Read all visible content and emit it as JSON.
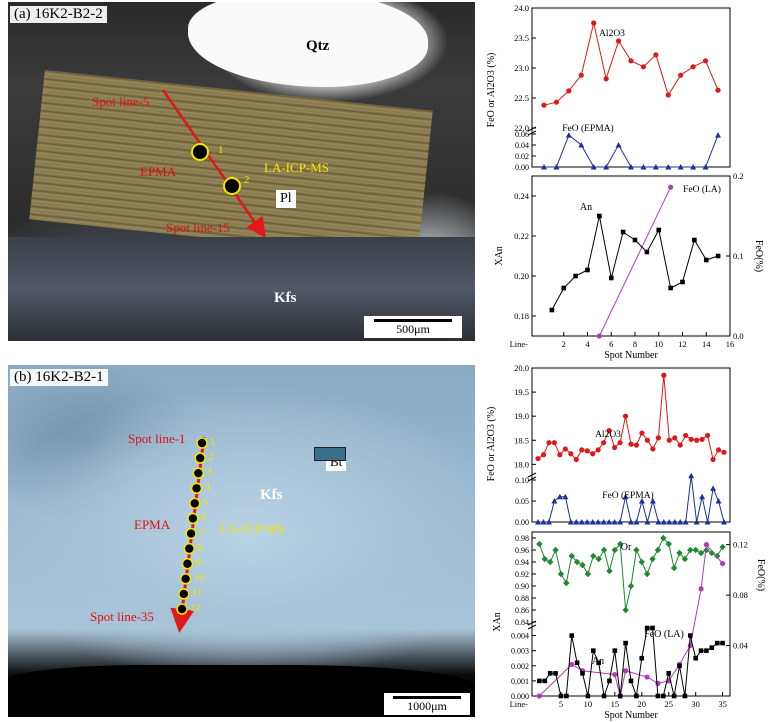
{
  "panel_a": {
    "title": "(a) 16K2-B2-2",
    "minerals": [
      "Qtz",
      "Pl",
      "Kfs"
    ],
    "spot_start": "Spot line-5",
    "spot_end": "Spot line-15",
    "spot_numbers": [
      "1",
      "2"
    ],
    "epma": "EPMA",
    "la": "LA-ICP-MS",
    "scale": "500μm"
  },
  "panel_b": {
    "title": "(b) 16K2-B2-1",
    "minerals": [
      "Kfs",
      "Bt"
    ],
    "spot_start": "Spot line-1",
    "spot_end": "Spot line-35",
    "spot_numbers": [
      "1",
      "2",
      "3",
      "4",
      "5",
      "6",
      "7",
      "8",
      "9",
      "10",
      "11",
      "12"
    ],
    "epma": "EPMA",
    "la": "LA-ICP-MS",
    "scale": "1000μm"
  },
  "colors": {
    "red": "#e01818",
    "blue": "#1f2f9a",
    "black": "#000000",
    "green": "#1c8a2e",
    "magenta": "#b03cb8"
  },
  "chart_data": [
    {
      "type": "line",
      "id": "a-top",
      "ylabel": "FeO or Al2O3 (%)",
      "x": [
        1,
        2,
        3,
        4,
        5,
        6,
        7,
        8,
        9,
        10,
        11,
        12,
        13,
        14,
        15
      ],
      "series": [
        {
          "name": "Al2O3",
          "values": [
            22.38,
            22.43,
            22.62,
            22.88,
            23.75,
            22.82,
            23.45,
            23.12,
            23.02,
            23.22,
            22.55,
            22.88,
            23.02,
            23.12,
            22.63
          ]
        },
        {
          "name": "FeO (EPMA)",
          "values": [
            0,
            0,
            0.058,
            0.04,
            0,
            0,
            0.04,
            0,
            0,
            0,
            0,
            0,
            0,
            0,
            0.058
          ]
        }
      ],
      "ylim_upper": [
        22.0,
        24.0
      ],
      "yticks_upper": [
        "22.0",
        "22.5",
        "23.0",
        "23.5",
        "24.0"
      ],
      "ylim_lower": [
        0,
        0.06
      ],
      "yticks_lower": [
        "0.00",
        "0.02",
        "0.04",
        "0.06"
      ]
    },
    {
      "type": "line",
      "id": "a-bottom",
      "xlabel": "Spot Number",
      "x_prefix": "Line-",
      "ylabel": "XAn",
      "y2label": "FeO(%)",
      "xticks": [
        "2",
        "4",
        "6",
        "8",
        "10",
        "12",
        "14",
        "16"
      ],
      "xlim": [
        0,
        16
      ],
      "series": [
        {
          "name": "An",
          "x": [
            1,
            2,
            3,
            4,
            5,
            6,
            7,
            8,
            9,
            10,
            11,
            12,
            13,
            14,
            15
          ],
          "values": [
            0.183,
            0.194,
            0.2,
            0.203,
            0.23,
            0.199,
            0.222,
            0.218,
            0.212,
            0.223,
            0.194,
            0.197,
            0.218,
            0.208,
            0.21
          ]
        },
        {
          "name": "FeO (LA)",
          "x": [
            5,
            11
          ],
          "values": [
            0.0,
            0.186
          ]
        }
      ],
      "ylim": [
        0.17,
        0.25
      ],
      "yticks": [
        "0.18",
        "0.20",
        "0.22",
        "0.24"
      ],
      "y2lim": [
        0,
        0.2
      ],
      "y2ticks": [
        "0.0",
        "0.1",
        "0.2"
      ]
    },
    {
      "type": "line",
      "id": "b-top",
      "ylabel": "FeO or Al2O3 (%)",
      "x": [
        1,
        2,
        3,
        4,
        5,
        6,
        7,
        8,
        9,
        10,
        11,
        12,
        13,
        14,
        15,
        16,
        17,
        18,
        19,
        20,
        21,
        22,
        23,
        24,
        25,
        26,
        27,
        28,
        29,
        30,
        31,
        32,
        33,
        34,
        35
      ],
      "series": [
        {
          "name": "Al2O3",
          "values": [
            18.12,
            18.2,
            18.45,
            18.45,
            18.2,
            18.32,
            18.22,
            18.1,
            18.3,
            18.28,
            18.22,
            18.3,
            18.45,
            18.7,
            18.35,
            18.45,
            19.0,
            18.42,
            18.4,
            18.65,
            18.5,
            18.32,
            18.55,
            19.85,
            18.5,
            18.55,
            18.4,
            18.6,
            18.52,
            18.5,
            18.52,
            18.6,
            18.1,
            18.3,
            18.25
          ]
        },
        {
          "name": "FeO (EPMA)",
          "values": [
            0,
            0,
            0,
            0.05,
            0.06,
            0.06,
            0,
            0,
            0,
            0,
            0,
            0,
            0,
            0,
            0,
            0,
            0.06,
            0,
            0,
            0.05,
            0,
            0.05,
            0,
            0,
            0,
            0,
            0,
            0,
            0.11,
            0,
            0.06,
            0,
            0.08,
            0.05,
            0
          ]
        }
      ],
      "ylim_upper": [
        17.8,
        20.0
      ],
      "yticks_upper": [
        "18.0",
        "18.5",
        "19.0",
        "19.5",
        "20.0"
      ],
      "ylim_lower": [
        0,
        0.1
      ],
      "yticks_lower": [
        "0.00",
        "0.05",
        "0.10"
      ]
    },
    {
      "type": "line",
      "id": "b-bottom",
      "xlabel": "Spot Number",
      "x_prefix": "Line-",
      "ylabel": "XAn",
      "y2label": "FeO(%)",
      "xticks": [
        "5",
        "10",
        "15",
        "20",
        "25",
        "30",
        "35"
      ],
      "xlim": [
        0,
        36
      ],
      "series": [
        {
          "name": "Or",
          "x": [
            1,
            2,
            3,
            4,
            5,
            6,
            7,
            8,
            9,
            10,
            11,
            12,
            13,
            14,
            15,
            16,
            17,
            18,
            19,
            20,
            21,
            22,
            23,
            24,
            25,
            26,
            27,
            28,
            29,
            30,
            31,
            32,
            33,
            34,
            35
          ],
          "values": [
            0.97,
            0.945,
            0.94,
            0.96,
            0.92,
            0.905,
            0.95,
            0.94,
            0.935,
            0.92,
            0.95,
            0.945,
            0.96,
            0.925,
            0.96,
            0.97,
            0.86,
            0.9,
            0.96,
            0.94,
            0.92,
            0.945,
            0.96,
            0.98,
            0.97,
            0.93,
            0.955,
            0.945,
            0.96,
            0.96,
            0.955,
            0.96,
            0.955,
            0.95,
            0.965
          ]
        },
        {
          "name": "An",
          "x": [
            1,
            2,
            3,
            4,
            5,
            6,
            7,
            8,
            9,
            10,
            11,
            12,
            13,
            14,
            15,
            16,
            17,
            18,
            19,
            20,
            21,
            22,
            23,
            24,
            25,
            26,
            27,
            28,
            29,
            30,
            31,
            32,
            33,
            34,
            35
          ],
          "values": [
            0.001,
            0.001,
            0.0015,
            0.0015,
            0,
            0,
            0.004,
            0.0022,
            0.0015,
            0,
            0.003,
            0.0022,
            0,
            0.001,
            0.003,
            0,
            0.0035,
            0.001,
            0,
            0.0025,
            0.0045,
            0.0045,
            0,
            0,
            0.0015,
            0,
            0.002,
            0,
            0.004,
            0.0025,
            0.003,
            0.003,
            0.0032,
            0.0035,
            0.0035
          ]
        },
        {
          "name": "FeO (LA)",
          "x": [
            1,
            7,
            9,
            15,
            16,
            17,
            21,
            23,
            25,
            27,
            29,
            31,
            32,
            35
          ],
          "values": [
            0,
            0.025,
            0.02,
            0.017,
            0,
            0.02,
            0.015,
            0.01,
            0.012,
            0.025,
            0.04,
            0.085,
            0.12,
            0.105
          ]
        }
      ],
      "ylim_upper": [
        0.84,
        0.99
      ],
      "yticks_upper": [
        "0.84",
        "0.86",
        "0.88",
        "0.90",
        "0.92",
        "0.94",
        "0.96",
        "0.98"
      ],
      "ylim_lower": [
        0,
        0.0045
      ],
      "yticks_lower": [
        "0.000",
        "0.001",
        "0.002",
        "0.003",
        "0.004"
      ],
      "y2lim": [
        0,
        0.13
      ],
      "y2ticks": [
        "0.04",
        "0.08",
        "0.12"
      ]
    }
  ]
}
